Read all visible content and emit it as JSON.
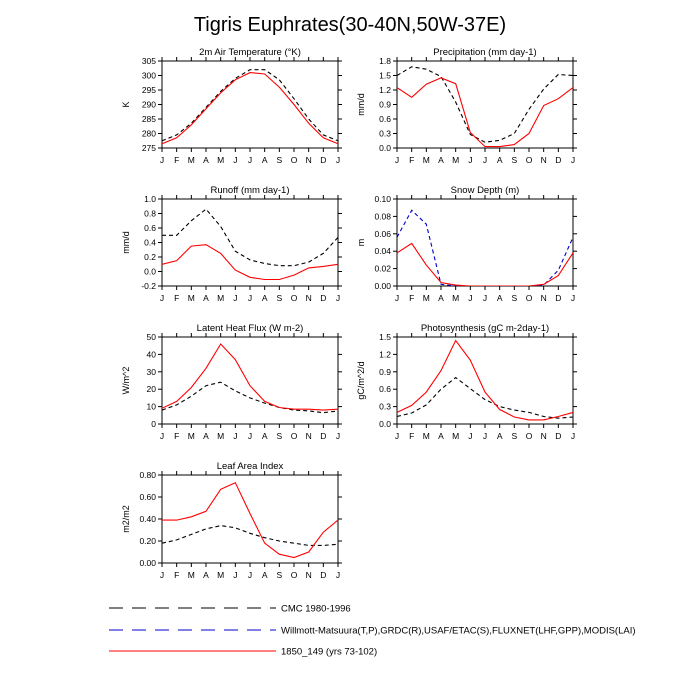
{
  "title": "Tigris Euphrates(30-40N,50W-37E)",
  "legend": [
    {
      "label": "CMC 1980-1996",
      "color": "#000000",
      "dash": "6,4"
    },
    {
      "label": "Willmott-Matsuura(T,P),GRDC(R),USAF/ETAC(S),FLUXNET(LHF,GPP),MODIS(LAI)",
      "color": "#0000cc",
      "dash": "6,4"
    },
    {
      "label": "1850_149 (yrs 73-102)",
      "color": "#ff0000",
      "dash": ""
    }
  ],
  "chart_data": [
    {
      "type": "line",
      "title": "2m Air Temperature (°K)",
      "ylabel": "K",
      "x": [
        "J",
        "F",
        "M",
        "A",
        "M",
        "J",
        "J",
        "A",
        "S",
        "O",
        "N",
        "D",
        "J"
      ],
      "ylim": [
        275,
        305
      ],
      "yticks": [
        275,
        280,
        285,
        290,
        295,
        300,
        305
      ],
      "ytick_labels": [
        "275",
        "280",
        "285",
        "290",
        "295",
        "300",
        "305"
      ],
      "series": [
        {
          "name": "CMC 1980-1996",
          "color": "#000000",
          "dash": "4,3",
          "values": [
            277.5,
            279.5,
            283.5,
            289,
            294.5,
            299,
            302,
            302,
            298.5,
            292,
            285,
            279.5,
            277.5
          ]
        },
        {
          "name": "1850_149 (yrs 73-102)",
          "color": "#ff0000",
          "dash": "",
          "values": [
            276.5,
            278.5,
            283,
            288.5,
            294,
            298.5,
            301,
            300.5,
            296,
            290,
            283.5,
            278.5,
            276.5
          ]
        }
      ]
    },
    {
      "type": "line",
      "title": "Precipitation (mm day-1)",
      "ylabel": "mm/d",
      "x": [
        "J",
        "F",
        "M",
        "A",
        "M",
        "J",
        "J",
        "A",
        "S",
        "O",
        "N",
        "D",
        "J"
      ],
      "ylim": [
        0,
        1.8
      ],
      "yticks": [
        0,
        0.3,
        0.6,
        0.9,
        1.2,
        1.5,
        1.8
      ],
      "ytick_labels": [
        "0.0",
        "0.3",
        "0.6",
        "0.9",
        "1.2",
        "1.5",
        "1.8"
      ],
      "series": [
        {
          "name": "CMC 1980-1996",
          "color": "#000000",
          "dash": "4,3",
          "values": [
            1.5,
            1.68,
            1.63,
            1.48,
            0.95,
            0.28,
            0.12,
            0.16,
            0.3,
            0.8,
            1.22,
            1.52,
            1.5
          ]
        },
        {
          "name": "1850_149 (yrs 73-102)",
          "color": "#ff0000",
          "dash": "",
          "values": [
            1.25,
            1.05,
            1.32,
            1.45,
            1.33,
            0.32,
            0.03,
            0.03,
            0.07,
            0.3,
            0.88,
            1.02,
            1.25
          ]
        }
      ]
    },
    {
      "type": "line",
      "title": "Runoff (mm day-1)",
      "ylabel": "mm/d",
      "x": [
        "J",
        "F",
        "M",
        "A",
        "M",
        "J",
        "J",
        "A",
        "S",
        "O",
        "N",
        "D",
        "J"
      ],
      "ylim": [
        -0.2,
        1.0
      ],
      "yticks": [
        -0.2,
        0,
        0.2,
        0.4,
        0.6,
        0.8,
        1.0
      ],
      "ytick_labels": [
        "-0.2",
        "0.0",
        "0.2",
        "0.4",
        "0.6",
        "0.8",
        "1.0"
      ],
      "series": [
        {
          "name": "CMC 1980-1996",
          "color": "#000000",
          "dash": "4,3",
          "values": [
            0.5,
            0.5,
            0.7,
            0.86,
            0.62,
            0.28,
            0.16,
            0.11,
            0.08,
            0.08,
            0.13,
            0.25,
            0.47
          ]
        },
        {
          "name": "1850_149 (yrs 73-102)",
          "color": "#ff0000",
          "dash": "",
          "values": [
            0.1,
            0.15,
            0.35,
            0.37,
            0.25,
            0.02,
            -0.08,
            -0.11,
            -0.11,
            -0.05,
            0.05,
            0.07,
            0.1
          ]
        }
      ]
    },
    {
      "type": "line",
      "title": "Snow Depth (m)",
      "ylabel": "m",
      "x": [
        "J",
        "F",
        "M",
        "A",
        "M",
        "J",
        "J",
        "A",
        "S",
        "O",
        "N",
        "D",
        "J"
      ],
      "ylim": [
        0,
        0.1
      ],
      "yticks": [
        0,
        0.02,
        0.04,
        0.06,
        0.08,
        0.1
      ],
      "ytick_labels": [
        "0.00",
        "0.02",
        "0.04",
        "0.06",
        "0.08",
        "0.10"
      ],
      "series": [
        {
          "name": "Willmott-Matsuura(T,P),GRDC(R),USAF/ETAC(S),FLUXNET(LHF,GPP),MODIS(LAI)",
          "color": "#0000cc",
          "dash": "4,3",
          "values": [
            0.056,
            0.087,
            0.071,
            0.002,
            0,
            0,
            0,
            0,
            0,
            0,
            0.001,
            0.018,
            0.056
          ]
        },
        {
          "name": "1850_149 (yrs 73-102)",
          "color": "#ff0000",
          "dash": "",
          "values": [
            0.038,
            0.049,
            0.024,
            0.004,
            0.001,
            0,
            0,
            0,
            0,
            0,
            0.002,
            0.012,
            0.038
          ]
        }
      ]
    },
    {
      "type": "line",
      "title": "Latent Heat Flux (W m-2)",
      "ylabel": "W/m^2",
      "x": [
        "J",
        "F",
        "M",
        "A",
        "M",
        "J",
        "J",
        "A",
        "S",
        "O",
        "N",
        "D",
        "J"
      ],
      "ylim": [
        0,
        50
      ],
      "yticks": [
        0,
        10,
        20,
        30,
        40,
        50
      ],
      "ytick_labels": [
        "0",
        "10",
        "20",
        "30",
        "40",
        "50"
      ],
      "series": [
        {
          "name": "CMC 1980-1996",
          "color": "#000000",
          "dash": "4,3",
          "values": [
            8,
            11,
            16,
            22,
            24,
            19,
            15,
            12,
            9.5,
            8,
            7.5,
            6.5,
            7.5
          ]
        },
        {
          "name": "1850_149 (yrs 73-102)",
          "color": "#ff0000",
          "dash": "",
          "values": [
            9,
            13,
            21,
            32,
            46,
            37,
            22,
            13,
            9.5,
            8.5,
            8.5,
            8,
            8.5
          ]
        }
      ]
    },
    {
      "type": "line",
      "title": "Photosynthesis (gC m-2day-1)",
      "ylabel": "gC/m^2/d",
      "x": [
        "J",
        "F",
        "M",
        "A",
        "M",
        "J",
        "J",
        "A",
        "S",
        "O",
        "N",
        "D",
        "J"
      ],
      "ylim": [
        0,
        1.5
      ],
      "yticks": [
        0,
        0.3,
        0.6,
        0.9,
        1.2,
        1.5
      ],
      "ytick_labels": [
        "0.0",
        "0.3",
        "0.6",
        "0.9",
        "1.2",
        "1.5"
      ],
      "series": [
        {
          "name": "CMC 1980-1996",
          "color": "#000000",
          "dash": "4,3",
          "values": [
            0.13,
            0.19,
            0.33,
            0.6,
            0.8,
            0.61,
            0.42,
            0.3,
            0.24,
            0.2,
            0.13,
            0.1,
            0.12
          ]
        },
        {
          "name": "1850_149 (yrs 73-102)",
          "color": "#ff0000",
          "dash": "",
          "values": [
            0.2,
            0.32,
            0.55,
            0.92,
            1.44,
            1.1,
            0.55,
            0.25,
            0.12,
            0.07,
            0.07,
            0.13,
            0.2
          ]
        }
      ]
    },
    {
      "type": "line",
      "title": "Leaf Area Index",
      "ylabel": "m2/m2",
      "x": [
        "J",
        "F",
        "M",
        "A",
        "M",
        "J",
        "J",
        "A",
        "S",
        "O",
        "N",
        "D",
        "J"
      ],
      "ylim": [
        0,
        0.8
      ],
      "yticks": [
        0,
        0.2,
        0.4,
        0.6,
        0.8
      ],
      "ytick_labels": [
        "0.00",
        "0.20",
        "0.40",
        "0.60",
        "0.80"
      ],
      "series": [
        {
          "name": "CMC 1980-1996",
          "color": "#000000",
          "dash": "4,3",
          "values": [
            0.18,
            0.21,
            0.26,
            0.31,
            0.34,
            0.32,
            0.27,
            0.23,
            0.2,
            0.18,
            0.16,
            0.16,
            0.17
          ]
        },
        {
          "name": "1850_149 (yrs 73-102)",
          "color": "#ff0000",
          "dash": "",
          "values": [
            0.39,
            0.39,
            0.42,
            0.47,
            0.67,
            0.73,
            0.45,
            0.18,
            0.08,
            0.05,
            0.1,
            0.28,
            0.39
          ]
        }
      ]
    }
  ]
}
